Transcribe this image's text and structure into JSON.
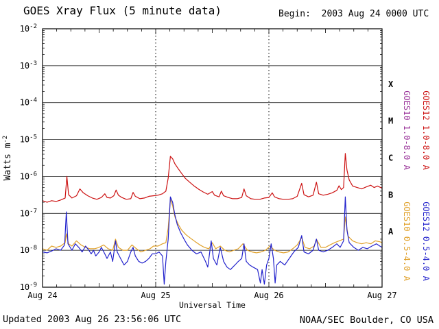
{
  "header": {
    "title": "GOES Xray Flux (5 minute data)",
    "begin": "Begin:  2003 Aug 24 0000 UTC"
  },
  "footer": {
    "updated": "Updated 2003 Aug 26 23:56:06 UTC",
    "credit": "NOAA/SEC Boulder, CO USA"
  },
  "chart_data": {
    "type": "line",
    "title": "GOES Xray Flux (5 minute data)",
    "xlabel": "Universal Time",
    "ylabel_parts": {
      "base": "Watts m",
      "exp": "-2"
    },
    "x_ticks": [
      "Aug 24",
      "Aug 25",
      "Aug 26",
      "Aug 27"
    ],
    "x_range_days": [
      0,
      3
    ],
    "y_log_range": [
      -9,
      -2
    ],
    "y_tick_exponents": [
      -2,
      -3,
      -4,
      -5,
      -6,
      -7,
      -8,
      -9
    ],
    "grid": {
      "horizontal_decades": true,
      "vertical_dotted_days": true
    },
    "flare_classes": [
      {
        "label": "X",
        "exp_center": -3.5
      },
      {
        "label": "M",
        "exp_center": -4.5
      },
      {
        "label": "C",
        "exp_center": -5.5
      },
      {
        "label": "B",
        "exp_center": -6.5
      },
      {
        "label": "A",
        "exp_center": -7.5
      }
    ],
    "right_labels": [
      {
        "label": "GOES10 1.0-8.0 A",
        "color": "#993399",
        "col": 0,
        "row": 0
      },
      {
        "label": "GOES12 1.0-8.0 A",
        "color": "#cc1111",
        "col": 1,
        "row": 0
      },
      {
        "label": "GOES10 0.5-4.0 A",
        "color": "#e0a028",
        "col": 0,
        "row": 1
      },
      {
        "label": "GOES12 0.5-4.0 A",
        "color": "#2222cc",
        "col": 1,
        "row": 1
      }
    ],
    "series": [
      {
        "name": "GOES10 0.5-4.0 A",
        "color": "#e0a028",
        "points": [
          [
            0.0,
            1.1e-08
          ],
          [
            0.04,
            1e-08
          ],
          [
            0.08,
            1.3e-08
          ],
          [
            0.12,
            1.2e-08
          ],
          [
            0.16,
            1.3e-08
          ],
          [
            0.2,
            1.6e-08
          ],
          [
            0.21,
            2.8e-08
          ],
          [
            0.23,
            1.5e-08
          ],
          [
            0.26,
            1.3e-08
          ],
          [
            0.3,
            1.8e-08
          ],
          [
            0.34,
            1.4e-08
          ],
          [
            0.38,
            1.2e-08
          ],
          [
            0.42,
            1.1e-08
          ],
          [
            0.46,
            1.1e-08
          ],
          [
            0.5,
            1.2e-08
          ],
          [
            0.54,
            1.4e-08
          ],
          [
            0.58,
            1.1e-08
          ],
          [
            0.62,
            1e-08
          ],
          [
            0.645,
            2e-08
          ],
          [
            0.67,
            1.2e-08
          ],
          [
            0.71,
            1e-08
          ],
          [
            0.75,
            1e-08
          ],
          [
            0.79,
            1.4e-08
          ],
          [
            0.83,
            1.1e-08
          ],
          [
            0.87,
            9e-09
          ],
          [
            0.91,
            1e-08
          ],
          [
            0.95,
            1.1e-08
          ],
          [
            0.98,
            1.3e-08
          ],
          [
            1.02,
            1.3e-08
          ],
          [
            1.06,
            1.5e-08
          ],
          [
            1.09,
            1.6e-08
          ],
          [
            1.11,
            4e-08
          ],
          [
            1.13,
            2.4e-07
          ],
          [
            1.15,
            1.6e-07
          ],
          [
            1.17,
            8e-08
          ],
          [
            1.2,
            5e-08
          ],
          [
            1.23,
            3.5e-08
          ],
          [
            1.27,
            2.6e-08
          ],
          [
            1.31,
            2.1e-08
          ],
          [
            1.35,
            1.7e-08
          ],
          [
            1.39,
            1.4e-08
          ],
          [
            1.43,
            1.2e-08
          ],
          [
            1.47,
            1.1e-08
          ],
          [
            1.5,
            1.6e-08
          ],
          [
            1.53,
            1.1e-08
          ],
          [
            1.57,
            1.3e-08
          ],
          [
            1.61,
            1e-08
          ],
          [
            1.65,
            9e-09
          ],
          [
            1.69,
            1e-08
          ],
          [
            1.73,
            1.1e-08
          ],
          [
            1.77,
            1.5e-08
          ],
          [
            1.81,
            1e-08
          ],
          [
            1.85,
            9e-09
          ],
          [
            1.89,
            8.5e-09
          ],
          [
            1.93,
            9e-09
          ],
          [
            1.97,
            1e-08
          ],
          [
            2.01,
            1.3e-08
          ],
          [
            2.05,
            1e-08
          ],
          [
            2.09,
            9e-09
          ],
          [
            2.13,
            8.5e-09
          ],
          [
            2.17,
            9e-09
          ],
          [
            2.21,
            1.1e-08
          ],
          [
            2.25,
            1.4e-08
          ],
          [
            2.29,
            2.2e-08
          ],
          [
            2.32,
            1.2e-08
          ],
          [
            2.36,
            1.1e-08
          ],
          [
            2.4,
            1.3e-08
          ],
          [
            2.42,
            2e-08
          ],
          [
            2.46,
            1.2e-08
          ],
          [
            2.5,
            1.2e-08
          ],
          [
            2.54,
            1.4e-08
          ],
          [
            2.58,
            1.6e-08
          ],
          [
            2.62,
            1.8e-08
          ],
          [
            2.66,
            2e-08
          ],
          [
            2.675,
            8e-08
          ],
          [
            2.7,
            2.4e-08
          ],
          [
            2.74,
            1.8e-08
          ],
          [
            2.78,
            1.6e-08
          ],
          [
            2.82,
            1.5e-08
          ],
          [
            2.86,
            1.6e-08
          ],
          [
            2.9,
            1.5e-08
          ],
          [
            2.94,
            1.8e-08
          ],
          [
            2.98,
            1.7e-08
          ],
          [
            3.0,
            1.6e-08
          ]
        ]
      },
      {
        "name": "GOES12 0.5-4.0 A",
        "color": "#2222cc",
        "points": [
          [
            0.0,
            9e-09
          ],
          [
            0.04,
            8.5e-09
          ],
          [
            0.08,
            9.5e-09
          ],
          [
            0.12,
            1.1e-08
          ],
          [
            0.16,
            1e-08
          ],
          [
            0.195,
            1.4e-08
          ],
          [
            0.21,
            1.1e-07
          ],
          [
            0.225,
            1.5e-08
          ],
          [
            0.26,
            1e-08
          ],
          [
            0.29,
            1.5e-08
          ],
          [
            0.32,
            1.2e-08
          ],
          [
            0.35,
            9e-09
          ],
          [
            0.38,
            1.3e-08
          ],
          [
            0.41,
            1e-08
          ],
          [
            0.43,
            8e-09
          ],
          [
            0.45,
            1e-08
          ],
          [
            0.47,
            7e-09
          ],
          [
            0.5,
            9e-09
          ],
          [
            0.52,
            1.2e-08
          ],
          [
            0.55,
            8e-09
          ],
          [
            0.57,
            6e-09
          ],
          [
            0.6,
            9e-09
          ],
          [
            0.62,
            5e-09
          ],
          [
            0.645,
            1.8e-08
          ],
          [
            0.66,
            9e-09
          ],
          [
            0.69,
            6e-09
          ],
          [
            0.72,
            4e-09
          ],
          [
            0.75,
            5e-09
          ],
          [
            0.78,
            9e-09
          ],
          [
            0.8,
            1.2e-08
          ],
          [
            0.82,
            7e-09
          ],
          [
            0.85,
            5e-09
          ],
          [
            0.88,
            4.5e-09
          ],
          [
            0.91,
            5e-09
          ],
          [
            0.94,
            6e-09
          ],
          [
            0.97,
            8e-09
          ],
          [
            1.0,
            8e-09
          ],
          [
            1.03,
            9e-09
          ],
          [
            1.06,
            7e-09
          ],
          [
            1.075,
            1.2e-09
          ],
          [
            1.09,
            5e-09
          ],
          [
            1.11,
            2e-08
          ],
          [
            1.13,
            2.8e-07
          ],
          [
            1.15,
            2e-07
          ],
          [
            1.17,
            9e-08
          ],
          [
            1.19,
            5e-08
          ],
          [
            1.22,
            3e-08
          ],
          [
            1.25,
            2e-08
          ],
          [
            1.28,
            1.4e-08
          ],
          [
            1.32,
            1e-08
          ],
          [
            1.36,
            8e-09
          ],
          [
            1.4,
            9e-09
          ],
          [
            1.44,
            5e-09
          ],
          [
            1.46,
            3.5e-09
          ],
          [
            1.49,
            1.8e-08
          ],
          [
            1.51,
            6e-09
          ],
          [
            1.54,
            4e-09
          ],
          [
            1.57,
            1.2e-08
          ],
          [
            1.6,
            5e-09
          ],
          [
            1.63,
            3.5e-09
          ],
          [
            1.66,
            3e-09
          ],
          [
            1.7,
            4e-09
          ],
          [
            1.73,
            5e-09
          ],
          [
            1.76,
            6e-09
          ],
          [
            1.78,
            1.5e-08
          ],
          [
            1.8,
            5e-09
          ],
          [
            1.83,
            4e-09
          ],
          [
            1.86,
            3.5e-09
          ],
          [
            1.9,
            3e-09
          ],
          [
            1.925,
            1.3e-09
          ],
          [
            1.94,
            3e-09
          ],
          [
            1.96,
            1.2e-09
          ],
          [
            1.98,
            4e-09
          ],
          [
            2.0,
            6e-09
          ],
          [
            2.02,
            1.5e-08
          ],
          [
            2.04,
            6e-09
          ],
          [
            2.055,
            1.3e-09
          ],
          [
            2.07,
            4e-09
          ],
          [
            2.1,
            5e-09
          ],
          [
            2.14,
            4e-09
          ],
          [
            2.18,
            6e-09
          ],
          [
            2.22,
            9e-09
          ],
          [
            2.26,
            1.2e-08
          ],
          [
            2.29,
            2.5e-08
          ],
          [
            2.31,
            9e-09
          ],
          [
            2.35,
            8e-09
          ],
          [
            2.39,
            1e-08
          ],
          [
            2.42,
            2e-08
          ],
          [
            2.44,
            1e-08
          ],
          [
            2.48,
            9e-09
          ],
          [
            2.52,
            1e-08
          ],
          [
            2.56,
            1.2e-08
          ],
          [
            2.6,
            1.5e-08
          ],
          [
            2.63,
            1.2e-08
          ],
          [
            2.66,
            1.8e-08
          ],
          [
            2.675,
            2.8e-07
          ],
          [
            2.69,
            3.5e-08
          ],
          [
            2.71,
            1.6e-08
          ],
          [
            2.75,
            1.2e-08
          ],
          [
            2.79,
            1e-08
          ],
          [
            2.83,
            1.2e-08
          ],
          [
            2.87,
            1.1e-08
          ],
          [
            2.91,
            1.3e-08
          ],
          [
            2.95,
            1.5e-08
          ],
          [
            2.98,
            1.3e-08
          ],
          [
            3.0,
            1.2e-08
          ]
        ]
      },
      {
        "name": "GOES12 1.0-8.0 A",
        "color": "#cc1111",
        "points": [
          [
            0.0,
            2.2e-07
          ],
          [
            0.04,
            2e-07
          ],
          [
            0.08,
            2.2e-07
          ],
          [
            0.12,
            2.1e-07
          ],
          [
            0.16,
            2.3e-07
          ],
          [
            0.2,
            2.6e-07
          ],
          [
            0.215,
            1e-06
          ],
          [
            0.23,
            3.2e-07
          ],
          [
            0.26,
            2.6e-07
          ],
          [
            0.3,
            3e-07
          ],
          [
            0.33,
            4.6e-07
          ],
          [
            0.36,
            3.6e-07
          ],
          [
            0.4,
            3e-07
          ],
          [
            0.44,
            2.6e-07
          ],
          [
            0.48,
            2.4e-07
          ],
          [
            0.52,
            2.7e-07
          ],
          [
            0.55,
            3.4e-07
          ],
          [
            0.57,
            2.7e-07
          ],
          [
            0.6,
            2.6e-07
          ],
          [
            0.63,
            3e-07
          ],
          [
            0.65,
            4.3e-07
          ],
          [
            0.67,
            3.1e-07
          ],
          [
            0.7,
            2.7e-07
          ],
          [
            0.74,
            2.4e-07
          ],
          [
            0.78,
            2.5e-07
          ],
          [
            0.8,
            3.7e-07
          ],
          [
            0.82,
            2.9e-07
          ],
          [
            0.86,
            2.5e-07
          ],
          [
            0.9,
            2.6e-07
          ],
          [
            0.94,
            2.9e-07
          ],
          [
            0.98,
            3e-07
          ],
          [
            1.02,
            3.1e-07
          ],
          [
            1.06,
            3.4e-07
          ],
          [
            1.09,
            4e-07
          ],
          [
            1.11,
            9e-07
          ],
          [
            1.13,
            3.5e-06
          ],
          [
            1.15,
            3e-06
          ],
          [
            1.17,
            2.2e-06
          ],
          [
            1.2,
            1.6e-06
          ],
          [
            1.23,
            1.2e-06
          ],
          [
            1.26,
            9e-07
          ],
          [
            1.3,
            7e-07
          ],
          [
            1.34,
            5.5e-07
          ],
          [
            1.38,
            4.5e-07
          ],
          [
            1.42,
            3.8e-07
          ],
          [
            1.46,
            3.3e-07
          ],
          [
            1.5,
            3.9e-07
          ],
          [
            1.52,
            3.1e-07
          ],
          [
            1.56,
            2.8e-07
          ],
          [
            1.58,
            4e-07
          ],
          [
            1.6,
            3e-07
          ],
          [
            1.64,
            2.7e-07
          ],
          [
            1.68,
            2.5e-07
          ],
          [
            1.72,
            2.5e-07
          ],
          [
            1.76,
            2.7e-07
          ],
          [
            1.78,
            4.6e-07
          ],
          [
            1.8,
            3e-07
          ],
          [
            1.84,
            2.5e-07
          ],
          [
            1.88,
            2.4e-07
          ],
          [
            1.92,
            2.4e-07
          ],
          [
            1.96,
            2.6e-07
          ],
          [
            2.0,
            2.7e-07
          ],
          [
            2.03,
            3.6e-07
          ],
          [
            2.05,
            2.8e-07
          ],
          [
            2.09,
            2.5e-07
          ],
          [
            2.13,
            2.4e-07
          ],
          [
            2.17,
            2.4e-07
          ],
          [
            2.21,
            2.5e-07
          ],
          [
            2.25,
            2.9e-07
          ],
          [
            2.29,
            6.5e-07
          ],
          [
            2.31,
            3.2e-07
          ],
          [
            2.35,
            2.8e-07
          ],
          [
            2.39,
            3.1e-07
          ],
          [
            2.42,
            7e-07
          ],
          [
            2.44,
            3.4e-07
          ],
          [
            2.48,
            3.1e-07
          ],
          [
            2.52,
            3.3e-07
          ],
          [
            2.56,
            3.6e-07
          ],
          [
            2.6,
            4.2e-07
          ],
          [
            2.62,
            5.6e-07
          ],
          [
            2.64,
            4.4e-07
          ],
          [
            2.66,
            5e-07
          ],
          [
            2.675,
            4.2e-06
          ],
          [
            2.69,
            1.5e-06
          ],
          [
            2.71,
            8e-07
          ],
          [
            2.74,
            5.5e-07
          ],
          [
            2.78,
            5e-07
          ],
          [
            2.82,
            4.6e-07
          ],
          [
            2.86,
            5.2e-07
          ],
          [
            2.9,
            5.8e-07
          ],
          [
            2.93,
            5e-07
          ],
          [
            2.96,
            5.5e-07
          ],
          [
            3.0,
            4.8e-07
          ]
        ]
      }
    ]
  }
}
